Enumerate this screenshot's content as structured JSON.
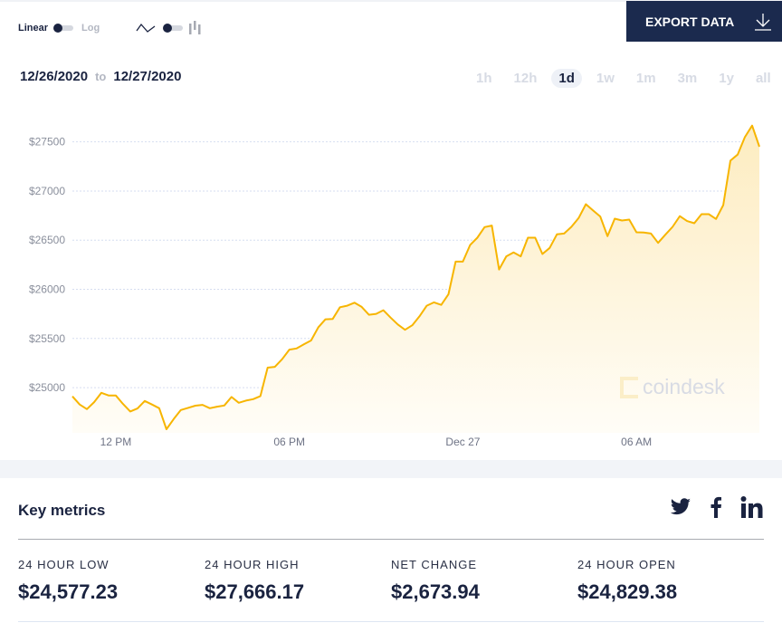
{
  "controls": {
    "linear_label": "Linear",
    "log_label": "Log",
    "line_icon": "line-chart-icon",
    "bar_icon": "bar-chart-icon"
  },
  "export": {
    "label": "EXPORT DATA",
    "icon": "download-icon"
  },
  "date_range": {
    "from": "12/26/2020",
    "sep": "to",
    "to": "12/27/2020"
  },
  "ranges": [
    {
      "label": "1h"
    },
    {
      "label": "12h"
    },
    {
      "label": "1d",
      "active": true
    },
    {
      "label": "1w"
    },
    {
      "label": "1m"
    },
    {
      "label": "3m"
    },
    {
      "label": "1y"
    },
    {
      "label": "all"
    }
  ],
  "watermark": "coindesk",
  "colors": {
    "line": "#f7b500",
    "fill": "#fdf3d6",
    "accent": "#1b2a4e"
  },
  "chart_data": {
    "type": "area",
    "scale": "linear",
    "grid": true,
    "yticks": [
      {
        "v": 25000,
        "label": "$25000"
      },
      {
        "v": 25500,
        "label": "$25500"
      },
      {
        "v": 26000,
        "label": "$26000"
      },
      {
        "v": 26500,
        "label": "$26500"
      },
      {
        "v": 27000,
        "label": "$27000"
      },
      {
        "v": 27500,
        "label": "$27500"
      }
    ],
    "xticks": [
      {
        "t": "12/26 12:00",
        "label": "12 PM"
      },
      {
        "t": "12/26 18:00",
        "label": "06 PM"
      },
      {
        "t": "12/27 00:00",
        "label": "Dec 27"
      },
      {
        "t": "12/27 06:00",
        "label": "06 AM"
      }
    ],
    "ylim": [
      24540,
      27930
    ],
    "points": [
      [
        "12/26 10:30",
        24911
      ],
      [
        "12/26 10:45",
        24828
      ],
      [
        "12/26 11:00",
        24781
      ],
      [
        "12/26 11:15",
        24852
      ],
      [
        "12/26 11:30",
        24947
      ],
      [
        "12/26 11:45",
        24920
      ],
      [
        "12/26 12:00",
        24920
      ],
      [
        "12/26 12:15",
        24834
      ],
      [
        "12/26 12:30",
        24757
      ],
      [
        "12/26 12:45",
        24788
      ],
      [
        "12/26 13:00",
        24864
      ],
      [
        "12/26 13:15",
        24828
      ],
      [
        "12/26 13:30",
        24791
      ],
      [
        "12/26 13:45",
        24577
      ],
      [
        "12/26 14:00",
        24680
      ],
      [
        "12/26 14:15",
        24772
      ],
      [
        "12/26 14:30",
        24794
      ],
      [
        "12/26 14:45",
        24816
      ],
      [
        "12/26 15:00",
        24825
      ],
      [
        "12/26 15:15",
        24791
      ],
      [
        "12/26 15:30",
        24806
      ],
      [
        "12/26 15:45",
        24818
      ],
      [
        "12/26 16:00",
        24905
      ],
      [
        "12/26 16:15",
        24846
      ],
      [
        "12/26 16:30",
        24868
      ],
      [
        "12/26 16:45",
        24883
      ],
      [
        "12/26 17:00",
        24914
      ],
      [
        "12/26 17:15",
        25203
      ],
      [
        "12/26 17:30",
        25212
      ],
      [
        "12/26 17:45",
        25289
      ],
      [
        "12/26 18:00",
        25387
      ],
      [
        "12/26 18:15",
        25399
      ],
      [
        "12/26 18:30",
        25440
      ],
      [
        "12/26 18:45",
        25480
      ],
      [
        "12/26 19:00",
        25612
      ],
      [
        "12/26 19:15",
        25695
      ],
      [
        "12/26 19:30",
        25699
      ],
      [
        "12/26 19:45",
        25818
      ],
      [
        "12/26 20:00",
        25833
      ],
      [
        "12/26 20:15",
        25864
      ],
      [
        "12/26 20:30",
        25821
      ],
      [
        "12/26 20:45",
        25741
      ],
      [
        "12/26 21:00",
        25750
      ],
      [
        "12/26 21:15",
        25787
      ],
      [
        "12/26 21:30",
        25713
      ],
      [
        "12/26 21:45",
        25643
      ],
      [
        "12/26 22:00",
        25588
      ],
      [
        "12/26 22:15",
        25634
      ],
      [
        "12/26 22:30",
        25726
      ],
      [
        "12/26 22:45",
        25833
      ],
      [
        "12/26 23:00",
        25867
      ],
      [
        "12/26 23:15",
        25842
      ],
      [
        "12/26 23:30",
        25950
      ],
      [
        "12/26 23:45",
        26282
      ],
      [
        "12/27 00:00",
        26282
      ],
      [
        "12/27 00:15",
        26451
      ],
      [
        "12/27 00:30",
        26525
      ],
      [
        "12/27 00:45",
        26633
      ],
      [
        "12/27 01:00",
        26649
      ],
      [
        "12/27 01:15",
        26202
      ],
      [
        "12/27 01:30",
        26335
      ],
      [
        "12/27 01:45",
        26375
      ],
      [
        "12/27 02:00",
        26335
      ],
      [
        "12/27 02:15",
        26525
      ],
      [
        "12/27 02:30",
        26525
      ],
      [
        "12/27 02:45",
        26359
      ],
      [
        "12/27 03:00",
        26421
      ],
      [
        "12/27 03:15",
        26559
      ],
      [
        "12/27 03:30",
        26568
      ],
      [
        "12/27 03:45",
        26636
      ],
      [
        "12/27 04:00",
        26725
      ],
      [
        "12/27 04:15",
        26866
      ],
      [
        "12/27 04:30",
        26802
      ],
      [
        "12/27 04:45",
        26741
      ],
      [
        "12/27 05:00",
        26541
      ],
      [
        "12/27 05:15",
        26719
      ],
      [
        "12/27 05:30",
        26700
      ],
      [
        "12/27 05:45",
        26709
      ],
      [
        "12/27 06:00",
        26580
      ],
      [
        "12/27 06:15",
        26578
      ],
      [
        "12/27 06:30",
        26568
      ],
      [
        "12/27 06:45",
        26473
      ],
      [
        "12/27 07:00",
        26556
      ],
      [
        "12/27 07:15",
        26636
      ],
      [
        "12/27 07:30",
        26744
      ],
      [
        "12/27 07:45",
        26695
      ],
      [
        "12/27 08:00",
        26673
      ],
      [
        "12/27 08:15",
        26765
      ],
      [
        "12/27 08:30",
        26765
      ],
      [
        "12/27 08:45",
        26716
      ],
      [
        "12/27 09:00",
        26857
      ],
      [
        "12/27 09:15",
        27309
      ],
      [
        "12/27 09:30",
        27371
      ],
      [
        "12/27 09:45",
        27549
      ],
      [
        "12/27 10:00",
        27666
      ],
      [
        "12/27 10:15",
        27451
      ]
    ]
  },
  "key_metrics": {
    "title": "Key metrics",
    "social": [
      "twitter-icon",
      "facebook-icon",
      "linkedin-icon"
    ],
    "items": [
      {
        "label": "24 HOUR LOW",
        "value": "$24,577.23"
      },
      {
        "label": "24 HOUR HIGH",
        "value": "$27,666.17"
      },
      {
        "label": "NET CHANGE",
        "value": "$2,673.94"
      },
      {
        "label": "24 HOUR OPEN",
        "value": "$24,829.38"
      }
    ]
  }
}
